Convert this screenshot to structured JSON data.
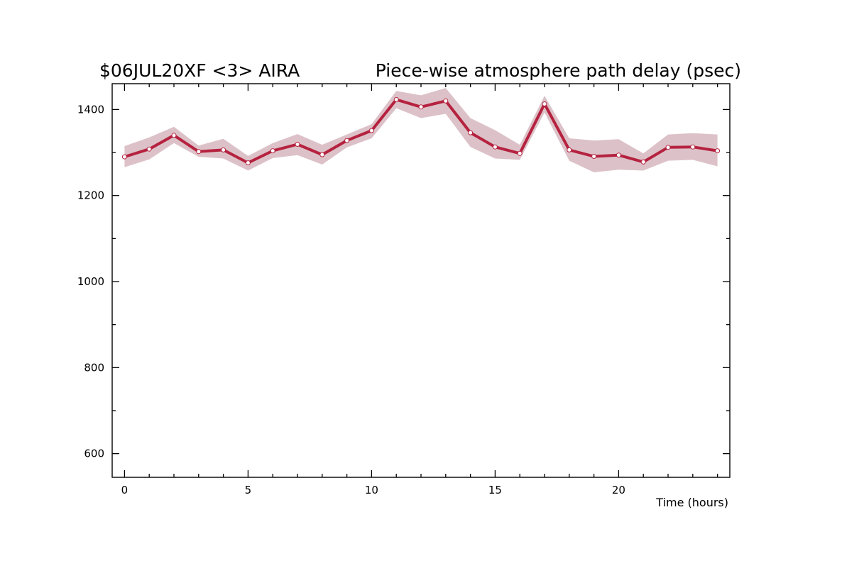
{
  "chart_data": {
    "type": "line",
    "title_left": "$06JUL20XF <3>  AIRA",
    "title_right": "Piece-wise atmosphere path delay (psec)",
    "xlabel": "Time (hours)",
    "ylabel": "",
    "xlim": [
      -0.5,
      24.5
    ],
    "ylim": [
      545,
      1460
    ],
    "x_ticks_major": [
      0,
      5,
      10,
      15,
      20
    ],
    "x_tick_labels": [
      "0",
      "5",
      "10",
      "15",
      "20"
    ],
    "x_ticks_minor": [
      1,
      2,
      3,
      4,
      6,
      7,
      8,
      9,
      11,
      12,
      13,
      14,
      16,
      17,
      18,
      19,
      21,
      22,
      23,
      24
    ],
    "y_ticks_major": [
      600,
      800,
      1000,
      1200,
      1400
    ],
    "y_tick_labels": [
      "600",
      "800",
      "1000",
      "1200",
      "1400"
    ],
    "y_ticks_minor": [
      700,
      900,
      1100,
      1300
    ],
    "grid": false,
    "colors": {
      "line": "#b5223f",
      "band": "#dcc2c8",
      "marker_fill": "#ffffff",
      "frame": "#000000"
    },
    "series": [
      {
        "x": [
          0,
          1,
          2,
          3,
          4,
          5,
          6,
          7,
          8,
          9,
          10,
          11,
          12,
          13,
          14,
          15,
          16,
          17,
          18,
          19,
          20,
          21,
          22,
          23,
          24
        ],
        "y": [
          1290,
          1308,
          1340,
          1302,
          1306,
          1276,
          1304,
          1319,
          1295,
          1328,
          1351,
          1423,
          1406,
          1420,
          1346,
          1313,
          1298,
          1413,
          1306,
          1291,
          1294,
          1278,
          1312,
          1313,
          1304
        ],
        "upper": [
          1315,
          1335,
          1360,
          1316,
          1332,
          1292,
          1322,
          1343,
          1318,
          1342,
          1366,
          1443,
          1433,
          1450,
          1380,
          1352,
          1318,
          1432,
          1333,
          1328,
          1331,
          1298,
          1342,
          1345,
          1342
        ],
        "lower": [
          1266,
          1284,
          1322,
          1290,
          1286,
          1258,
          1287,
          1294,
          1272,
          1312,
          1333,
          1403,
          1380,
          1390,
          1313,
          1286,
          1283,
          1393,
          1281,
          1254,
          1260,
          1258,
          1281,
          1283,
          1268
        ]
      }
    ]
  }
}
